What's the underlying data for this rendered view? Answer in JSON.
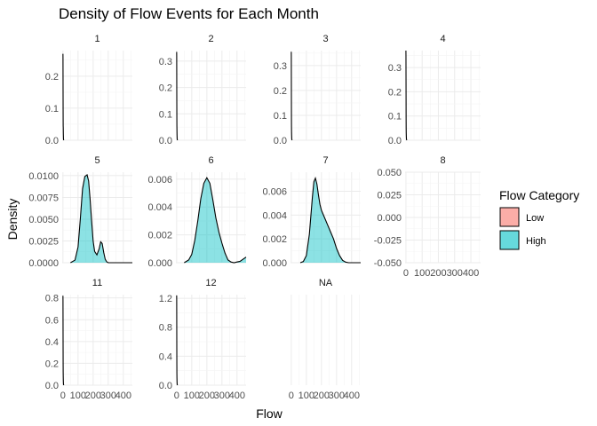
{
  "chart_data": {
    "type": "area",
    "title": "Density of Flow Events for Each Month",
    "xlabel": "Flow",
    "ylabel": "Density",
    "x_ticks": [
      0,
      100,
      200,
      300,
      400
    ],
    "x_tick_labels": [
      "0",
      "100",
      "200",
      "300",
      "400"
    ],
    "xlim": [
      -5,
      460
    ],
    "grid": true,
    "legend": {
      "title": "Flow Category",
      "position": "right",
      "entries": [
        {
          "label": "Low",
          "color": "#F8766D"
        },
        {
          "label": "High",
          "color": "#00BFC4"
        }
      ]
    },
    "panels": [
      {
        "label": "1",
        "ylim": [
          0,
          0.28
        ],
        "y_ticks": [
          0.0,
          0.1,
          0.2
        ],
        "y_tick_labels": [
          "0.0",
          "0.1",
          "0.2"
        ],
        "curves": [
          {
            "category": "Low",
            "filled": false,
            "x": [
              0,
              0.3,
              0.6,
              1.0,
              1.3,
              1.6,
              2.0,
              2.6,
              3.5,
              5
            ],
            "y": [
              0.27,
              0.26,
              0.2,
              0.12,
              0.07,
              0.045,
              0.04,
              0.02,
              0.004,
              0
            ]
          }
        ]
      },
      {
        "label": "2",
        "ylim": [
          0,
          0.34
        ],
        "y_ticks": [
          0.0,
          0.1,
          0.2,
          0.3
        ],
        "y_tick_labels": [
          "0.0",
          "0.1",
          "0.2",
          "0.3"
        ],
        "curves": [
          {
            "category": "Low",
            "filled": false,
            "x": [
              0,
              0.3,
              0.6,
              1.0,
              1.3,
              1.6,
              2.0,
              2.6,
              3.5,
              5
            ],
            "y": [
              0.335,
              0.32,
              0.25,
              0.15,
              0.09,
              0.055,
              0.04,
              0.02,
              0.005,
              0
            ]
          }
        ]
      },
      {
        "label": "3",
        "ylim": [
          0,
          0.36
        ],
        "y_ticks": [
          0.0,
          0.1,
          0.2,
          0.3
        ],
        "y_tick_labels": [
          "0.0",
          "0.1",
          "0.2",
          "0.3"
        ],
        "curves": [
          {
            "category": "Low",
            "filled": false,
            "x": [
              0,
              0.3,
              0.6,
              1.0,
              1.3,
              1.6,
              2.0,
              2.6,
              3.5,
              5
            ],
            "y": [
              0.355,
              0.34,
              0.26,
              0.16,
              0.09,
              0.055,
              0.035,
              0.02,
              0.005,
              0
            ]
          }
        ]
      },
      {
        "label": "4",
        "ylim": [
          0,
          0.37
        ],
        "y_ticks": [
          0.0,
          0.1,
          0.2,
          0.3
        ],
        "y_tick_labels": [
          "0.0",
          "0.1",
          "0.2",
          "0.3"
        ],
        "curves": [
          {
            "category": "Low",
            "filled": false,
            "x": [
              0,
              0.3,
              0.6,
              1.0,
              1.3,
              1.6,
              2.0,
              2.6,
              3.5,
              5
            ],
            "y": [
              0.37,
              0.35,
              0.27,
              0.17,
              0.09,
              0.05,
              0.03,
              0.015,
              0.004,
              0
            ]
          }
        ]
      },
      {
        "label": "5",
        "ylim": [
          0,
          0.0104
        ],
        "y_ticks": [
          0.0,
          0.0025,
          0.005,
          0.0075,
          0.01
        ],
        "y_tick_labels": [
          "0.0000",
          "0.0025",
          "0.0050",
          "0.0075",
          "0.0100"
        ],
        "curves": [
          {
            "category": "High",
            "filled": true,
            "x": [
              50,
              80,
              100,
              115,
              130,
              145,
              160,
              170,
              180,
              190,
              200,
              210,
              225,
              240,
              250,
              260,
              270,
              280,
              290,
              300,
              320,
              340,
              360,
              380,
              400,
              420,
              440,
              460
            ],
            "y": [
              0.0,
              0.0003,
              0.0018,
              0.005,
              0.0085,
              0.0099,
              0.0101,
              0.0094,
              0.0073,
              0.0048,
              0.0025,
              0.0013,
              0.0009,
              0.0016,
              0.0024,
              0.0022,
              0.0012,
              0.0004,
              0.0001,
              0.0,
              0.0,
              0.0,
              0.0,
              0.0,
              0.0,
              0.0,
              0.0,
              0.0
            ]
          }
        ]
      },
      {
        "label": "6",
        "ylim": [
          0,
          0.0065
        ],
        "y_ticks": [
          0.0,
          0.002,
          0.004,
          0.006
        ],
        "y_tick_labels": [
          "0.000",
          "0.002",
          "0.004",
          "0.006"
        ],
        "curves": [
          {
            "category": "High",
            "filled": true,
            "x": [
              50,
              80,
              100,
              120,
              140,
              160,
              180,
              200,
              220,
              240,
              260,
              280,
              300,
              320,
              340,
              360,
              380,
              400,
              420,
              440,
              460
            ],
            "y": [
              0.0,
              0.0002,
              0.0006,
              0.0016,
              0.003,
              0.0046,
              0.0057,
              0.0061,
              0.0057,
              0.0045,
              0.0032,
              0.0022,
              0.0014,
              0.0007,
              0.0002,
              5e-05,
              0.0,
              5e-05,
              0.0001,
              0.00025,
              0.0004
            ]
          }
        ]
      },
      {
        "label": "7",
        "ylim": [
          0,
          0.0076
        ],
        "y_ticks": [
          0.0,
          0.002,
          0.004,
          0.006
        ],
        "y_tick_labels": [
          "0.000",
          "0.002",
          "0.004",
          "0.006"
        ],
        "curves": [
          {
            "category": "High",
            "filled": true,
            "x": [
              60,
              80,
              100,
              120,
              140,
              150,
              160,
              170,
              180,
              190,
              200,
              220,
              240,
              260,
              280,
              300,
              320,
              340,
              360,
              380,
              400,
              420,
              440,
              460
            ],
            "y": [
              0.0,
              0.0001,
              0.0006,
              0.0024,
              0.0055,
              0.0068,
              0.0071,
              0.0066,
              0.0057,
              0.0049,
              0.0044,
              0.0038,
              0.0032,
              0.0026,
              0.002,
              0.0012,
              0.0006,
              0.0002,
              5e-05,
              0.0,
              0.0,
              0.0,
              0.0,
              0.0
            ]
          }
        ]
      },
      {
        "label": "8",
        "ylim": [
          -0.05,
          0.05
        ],
        "y_ticks": [
          -0.05,
          -0.025,
          0.0,
          0.025,
          0.05
        ],
        "y_tick_labels": [
          "-0.050",
          "-0.025",
          "0.000",
          "0.025",
          "0.050"
        ],
        "curves": [],
        "show_x_ticks": true
      },
      {
        "label": "11",
        "ylim": [
          0,
          0.83
        ],
        "y_ticks": [
          0.0,
          0.2,
          0.4,
          0.6,
          0.8
        ],
        "y_tick_labels": [
          "0.0",
          "0.2",
          "0.4",
          "0.6",
          "0.8"
        ],
        "curves": [
          {
            "category": "Low",
            "filled": false,
            "x": [
              0,
              0.3,
              0.6,
              1.0,
              1.3,
              1.6,
              2.0,
              2.6,
              3.5,
              5
            ],
            "y": [
              0.82,
              0.78,
              0.6,
              0.35,
              0.2,
              0.12,
              0.08,
              0.04,
              0.01,
              0
            ]
          }
        ]
      },
      {
        "label": "12",
        "ylim": [
          0,
          1.25
        ],
        "y_ticks": [
          0.0,
          0.4,
          0.8,
          1.2
        ],
        "y_tick_labels": [
          "0.0",
          "0.4",
          "0.8",
          "1.2"
        ],
        "curves": [
          {
            "category": "Low",
            "filled": false,
            "x": [
              0,
              0.3,
              0.6,
              1.0,
              1.3,
              1.6,
              2.0,
              2.6,
              3.5,
              5
            ],
            "y": [
              1.24,
              1.18,
              0.9,
              0.5,
              0.28,
              0.16,
              0.1,
              0.05,
              0.012,
              0
            ]
          }
        ]
      },
      {
        "label": "NA",
        "ylim": [
          0,
          1
        ],
        "y_ticks": [],
        "y_tick_labels": [],
        "curves": []
      }
    ]
  }
}
